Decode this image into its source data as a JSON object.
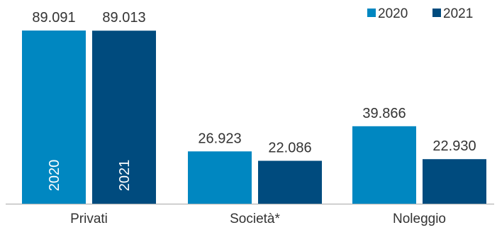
{
  "chart_data": {
    "type": "bar",
    "title": "",
    "xlabel": "",
    "ylabel": "",
    "categories": [
      "Privati",
      "Società*",
      "Noleggio"
    ],
    "series": [
      {
        "name": "2020",
        "color": "#0087C1",
        "values": [
          89091,
          26923,
          39866
        ],
        "value_labels": [
          "89.091",
          "26.923",
          "39.866"
        ]
      },
      {
        "name": "2021",
        "color": "#004B7E",
        "values": [
          89013,
          22086,
          22930
        ],
        "value_labels": [
          "89.013",
          "22.086",
          "22.930"
        ]
      }
    ],
    "inner_labels": {
      "category_index": 0,
      "texts": [
        "2020",
        "2021"
      ]
    },
    "ylim": [
      0,
      89091
    ],
    "grid": false,
    "legend": "top-right"
  },
  "colors": {
    "axis": "#BFBFBF",
    "text": "#333333"
  }
}
